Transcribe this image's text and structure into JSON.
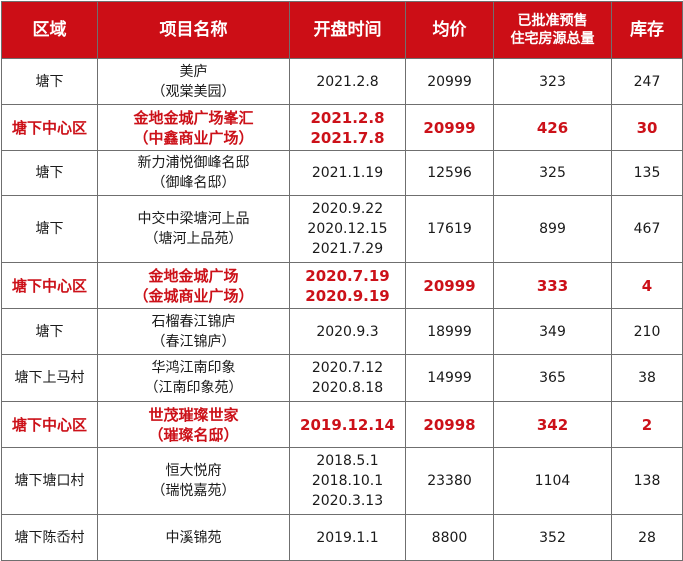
{
  "header": {
    "district": "区域",
    "project": "项目名称",
    "open_time": "开盘时间",
    "avg_price": "均价",
    "supply_line1": "已批准预售",
    "supply_line2": "住宅房源总量",
    "stock": "库存"
  },
  "colors": {
    "header_bg": "#cc0e16",
    "highlight_text": "#cc1119"
  },
  "rows": [
    {
      "highlight": false,
      "district": "塘下",
      "name": [
        "美庐",
        "（观棠美园）"
      ],
      "dates": [
        "2021.2.8"
      ],
      "price": "20999",
      "supply": "323",
      "stock": "247"
    },
    {
      "highlight": true,
      "district": "塘下中心区",
      "name": [
        "金地金城广场峯汇",
        "（中鑫商业广场）"
      ],
      "dates": [
        "2021.2.8",
        "2021.7.8"
      ],
      "price": "20999",
      "supply": "426",
      "stock": "30"
    },
    {
      "highlight": false,
      "district": "塘下",
      "name": [
        "新力浦悦御峰名邸",
        "（御峰名邸）"
      ],
      "dates": [
        "2021.1.19"
      ],
      "price": "12596",
      "supply": "325",
      "stock": "135"
    },
    {
      "highlight": false,
      "district": "塘下",
      "name": [
        "中交中梁塘河上品",
        "（塘河上品苑）"
      ],
      "dates": [
        "2020.9.22",
        "2020.12.15",
        "2021.7.29"
      ],
      "price": "17619",
      "supply": "899",
      "stock": "467"
    },
    {
      "highlight": true,
      "district": "塘下中心区",
      "name": [
        "金地金城广场",
        "（金城商业广场）"
      ],
      "dates": [
        "2020.7.19",
        "2020.9.19"
      ],
      "price": "20999",
      "supply": "333",
      "stock": "4"
    },
    {
      "highlight": false,
      "district": "塘下",
      "name": [
        "石榴春江锦庐",
        "（春江锦庐）"
      ],
      "dates": [
        "2020.9.3"
      ],
      "price": "18999",
      "supply": "349",
      "stock": "210"
    },
    {
      "highlight": false,
      "district": "塘下上马村",
      "name": [
        "华鸿江南印象",
        "（江南印象苑）"
      ],
      "dates": [
        "2020.7.12",
        "2020.8.18"
      ],
      "price": "14999",
      "supply": "365",
      "stock": "38"
    },
    {
      "highlight": true,
      "district": "塘下中心区",
      "name": [
        "世茂璀璨世家",
        "（璀璨名邸）"
      ],
      "dates": [
        "2019.12.14"
      ],
      "price": "20998",
      "supply": "342",
      "stock": "2"
    },
    {
      "highlight": false,
      "district": "塘下塘口村",
      "name": [
        "恒大悦府",
        "（瑞悦嘉苑）"
      ],
      "dates": [
        "2018.5.1",
        "2018.10.1",
        "2020.3.13"
      ],
      "price": "23380",
      "supply": "1104",
      "stock": "138"
    },
    {
      "highlight": false,
      "district": "塘下陈岙村",
      "name": [
        "中溪锦苑"
      ],
      "dates": [
        "2019.1.1"
      ],
      "price": "8800",
      "supply": "352",
      "stock": "28"
    }
  ]
}
